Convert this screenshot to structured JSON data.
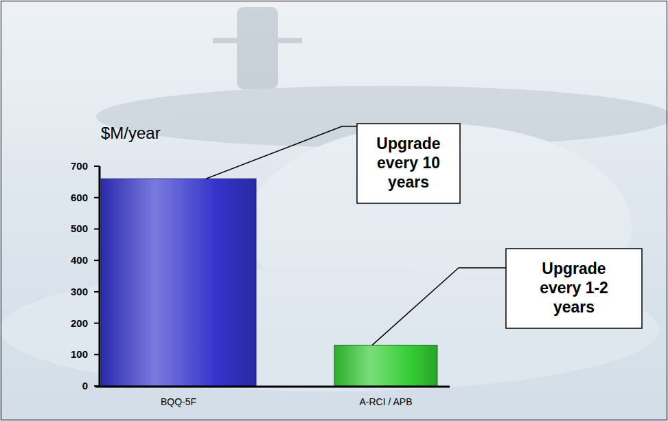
{
  "chart_data": {
    "type": "bar",
    "ylabel": "$M/year",
    "categories": [
      "BQQ-5F",
      "A-RCI / APB"
    ],
    "values": [
      660,
      130
    ],
    "colors": [
      "#3333cc",
      "#33cc33"
    ],
    "ylim": [
      0,
      700
    ],
    "yticks": [
      0,
      100,
      200,
      300,
      400,
      500,
      600,
      700
    ],
    "grid": false,
    "annotations": [
      "Upgrade every 10 years",
      "Upgrade every 1-2 years"
    ]
  }
}
